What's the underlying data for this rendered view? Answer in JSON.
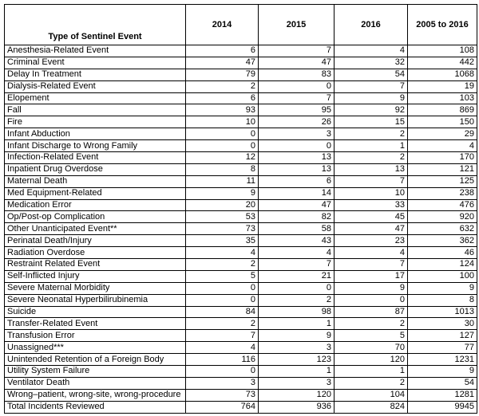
{
  "table": {
    "header": [
      "Type of Sentinel Event",
      "2014",
      "2015",
      "2016",
      "2005 to 2016"
    ],
    "rows": [
      [
        "Anesthesia-Related Event",
        6,
        7,
        4,
        108
      ],
      [
        "Criminal Event",
        47,
        47,
        32,
        442
      ],
      [
        "Delay In Treatment",
        79,
        83,
        54,
        1068
      ],
      [
        "Dialysis-Related Event",
        2,
        0,
        7,
        19
      ],
      [
        "Elopement",
        6,
        7,
        9,
        103
      ],
      [
        "Fall",
        93,
        95,
        92,
        869
      ],
      [
        "Fire",
        10,
        26,
        15,
        150
      ],
      [
        "Infant Abduction",
        0,
        3,
        2,
        29
      ],
      [
        "Infant Discharge to Wrong Family",
        0,
        0,
        1,
        4
      ],
      [
        "Infection-Related Event",
        12,
        13,
        2,
        170
      ],
      [
        "Inpatient Drug Overdose",
        8,
        13,
        13,
        121
      ],
      [
        "Maternal Death",
        11,
        6,
        7,
        125
      ],
      [
        "Med Equipment-Related",
        9,
        14,
        10,
        238
      ],
      [
        "Medication Error",
        20,
        47,
        33,
        476
      ],
      [
        "Op/Post-op Complication",
        53,
        82,
        45,
        920
      ],
      [
        "Other Unanticipated Event**",
        73,
        58,
        47,
        632
      ],
      [
        "Perinatal Death/Injury",
        35,
        43,
        23,
        362
      ],
      [
        "Radiation Overdose",
        4,
        4,
        4,
        46
      ],
      [
        "Restraint Related Event",
        2,
        7,
        7,
        124
      ],
      [
        "Self-Inflicted Injury",
        5,
        21,
        17,
        100
      ],
      [
        "Severe Maternal Morbidity",
        0,
        0,
        9,
        9
      ],
      [
        "Severe Neonatal Hyperbilirubinemia",
        0,
        2,
        0,
        8
      ],
      [
        "Suicide",
        84,
        98,
        87,
        1013
      ],
      [
        "Transfer-Related Event",
        2,
        1,
        2,
        30
      ],
      [
        "Transfusion Error",
        7,
        9,
        5,
        127
      ],
      [
        "Unassigned***",
        4,
        3,
        70,
        77
      ],
      [
        "Unintended Retention of a Foreign Body",
        116,
        123,
        120,
        1231
      ],
      [
        "Utility System Failure",
        0,
        1,
        1,
        9
      ],
      [
        "Ventilator Death",
        3,
        3,
        2,
        54
      ],
      [
        "Wrong–patient, wrong-site, wrong-procedure",
        73,
        120,
        104,
        1281
      ],
      [
        "Total Incidents Reviewed",
        764,
        936,
        824,
        9945
      ]
    ]
  }
}
